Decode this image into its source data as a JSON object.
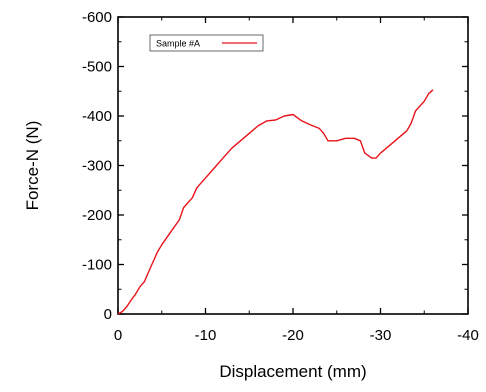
{
  "chart_data": {
    "type": "line",
    "title": "",
    "xlabel": "Displacement  (mm)",
    "ylabel": "Force-N  (N)",
    "xlim": [
      0,
      -40
    ],
    "ylim": [
      0,
      -600
    ],
    "x_ticks": [
      0,
      -10,
      -20,
      -30,
      -40
    ],
    "y_ticks": [
      0,
      -100,
      -200,
      -300,
      -400,
      -500,
      -600
    ],
    "x_tick_labels": [
      "0",
      "-10",
      "-20",
      "-30",
      "-40"
    ],
    "y_tick_labels": [
      "0",
      "-100",
      "-200",
      "-300",
      "-400",
      "-500",
      "-600"
    ],
    "grid": false,
    "legend_position": "top-left",
    "series": [
      {
        "name": "Sample #A",
        "color": "#e8141b",
        "x": [
          0,
          -0.5,
          -1,
          -1.5,
          -2,
          -2.5,
          -3,
          -3.5,
          -4,
          -4.5,
          -5,
          -6,
          -7,
          -7.5,
          -8.5,
          -9,
          -10,
          -11,
          -12,
          -13,
          -14,
          -15,
          -16,
          -17,
          -18,
          -19,
          -20,
          -21,
          -22,
          -23,
          -23.5,
          -24,
          -25,
          -26,
          -27,
          -27.7,
          -28.2,
          -29,
          -29.5,
          -30,
          -31,
          -32,
          -33,
          -33.5,
          -34,
          -35,
          -35.5,
          -36
        ],
        "y": [
          0,
          -5,
          -15,
          -28,
          -40,
          -55,
          -65,
          -85,
          -105,
          -125,
          -140,
          -165,
          -190,
          -215,
          -235,
          -255,
          -275,
          -295,
          -315,
          -335,
          -350,
          -365,
          -380,
          -390,
          -392,
          -400,
          -403,
          -390,
          -382,
          -375,
          -365,
          -350,
          -350,
          -355,
          -355,
          -350,
          -325,
          -315,
          -315,
          -325,
          -340,
          -355,
          -370,
          -385,
          -410,
          -430,
          -445,
          -453
        ]
      }
    ]
  }
}
